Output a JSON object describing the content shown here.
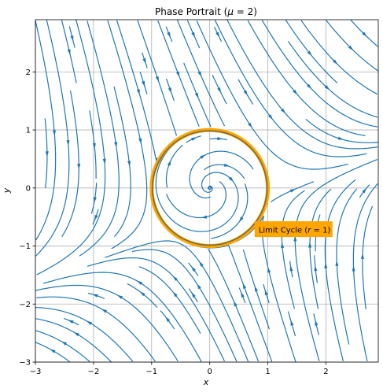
{
  "chart_data": {
    "type": "streamplot",
    "title": "Phase Portrait (μ = 2)",
    "title_parts": {
      "main": "Phase Portrait (",
      "symbol": "μ",
      "rest": " = 2)"
    },
    "xlabel": "x",
    "ylabel": "y",
    "xlim": [
      -3,
      2.9
    ],
    "ylim": [
      -3,
      2.9
    ],
    "x_ticks": [
      -3,
      -2,
      -1,
      0,
      1,
      2
    ],
    "y_ticks": [
      -3,
      -2,
      -1,
      0,
      1,
      2
    ],
    "x_tick_labels": [
      "−3",
      "−2",
      "−1",
      "0",
      "1",
      "2"
    ],
    "y_tick_labels": [
      "−3",
      "−2",
      "−1",
      "0",
      "1",
      "2"
    ],
    "grid": true,
    "mu": 2,
    "vector_field": "dr/dt = r(1 - r²), dθ/dt = μ; plus a rotated saddle-like flow outside",
    "stream_color": "#1f77b4",
    "limit_cycle": {
      "radius": 1,
      "color": "#ffa500",
      "label": "Limit Cycle (r = 1)",
      "label_parts": {
        "main": "Limit Cycle (",
        "symbol": "r",
        "rest": " = 1)"
      },
      "label_at": [
        0.8,
        -0.75
      ]
    },
    "inner_circle_color": "#6b6b4a"
  }
}
